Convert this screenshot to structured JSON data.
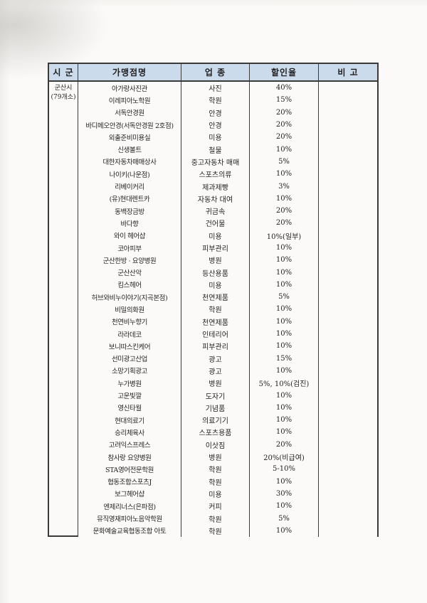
{
  "colors": {
    "header_bg": "#ccdbec",
    "border": "#3a3a3a",
    "page_bg": "#fbfaf8"
  },
  "region": {
    "city": "군산시",
    "count": "(79개소)"
  },
  "table": {
    "headers": {
      "sigun": "시 군",
      "store": "가맹점명",
      "category": "업 종",
      "discount": "할인율",
      "note": "비 고"
    },
    "rows": [
      {
        "store": "아가랑사진관",
        "category": "사진",
        "discount": "40%",
        "note": ""
      },
      {
        "store": "이레피아노학원",
        "category": "학원",
        "discount": "15%",
        "note": ""
      },
      {
        "store": "서독안경원",
        "category": "안경",
        "discount": "20%",
        "note": ""
      },
      {
        "store": "바디메오안경(서독안경원 2호점)",
        "category": "안경",
        "discount": "20%",
        "note": ""
      },
      {
        "store": "외출준비미용실",
        "category": "미용",
        "discount": "20%",
        "note": ""
      },
      {
        "store": "신생볼트",
        "category": "철물",
        "discount": "10%",
        "note": ""
      },
      {
        "store": "대한자동차매매상사",
        "category": "중고자동차 매매",
        "discount": "5%",
        "note": ""
      },
      {
        "store": "나이키(나운점)",
        "category": "스포츠의류",
        "discount": "10%",
        "note": ""
      },
      {
        "store": "리베이커리",
        "category": "제과제빵",
        "discount": "3%",
        "note": ""
      },
      {
        "store": "(유)현대렌트카",
        "category": "자동차 대여",
        "discount": "10%",
        "note": ""
      },
      {
        "store": "동백장금방",
        "category": "귀금속",
        "discount": "20%",
        "note": ""
      },
      {
        "store": "바다향",
        "category": "건어물",
        "discount": "20%",
        "note": ""
      },
      {
        "store": "와이 헤어샵",
        "category": "미용",
        "discount": "10%(일부)",
        "note": ""
      },
      {
        "store": "코아피부",
        "category": "피부관리",
        "discount": "10%",
        "note": ""
      },
      {
        "store": "군산한방 · 요양병원",
        "category": "병원",
        "discount": "10%",
        "note": ""
      },
      {
        "store": "군산산악",
        "category": "등산용품",
        "discount": "10%",
        "note": ""
      },
      {
        "store": "킴스헤어",
        "category": "미용",
        "discount": "10%",
        "note": ""
      },
      {
        "store": "허브와비누이야기(지곡본점)",
        "category": "천연제품",
        "discount": "5%",
        "note": ""
      },
      {
        "store": "비밀의화원",
        "category": "학원",
        "discount": "10%",
        "note": ""
      },
      {
        "store": "천연비누향기",
        "category": "천연제품",
        "discount": "10%",
        "note": ""
      },
      {
        "store": "라라데코",
        "category": "인테리어",
        "discount": "10%",
        "note": ""
      },
      {
        "store": "보니따스킨케어",
        "category": "피부관리",
        "discount": "10%",
        "note": ""
      },
      {
        "store": "선미광고산업",
        "category": "광고",
        "discount": "15%",
        "note": ""
      },
      {
        "store": "소망기획광고",
        "category": "광고",
        "discount": "10%",
        "note": ""
      },
      {
        "store": "누가병원",
        "category": "병원",
        "discount": "5%, 10%(검진)",
        "note": ""
      },
      {
        "store": "고운빛깔",
        "category": "도자기",
        "discount": "10%",
        "note": ""
      },
      {
        "store": "영신타월",
        "category": "기념품",
        "discount": "10%",
        "note": ""
      },
      {
        "store": "현대의료기",
        "category": "의료기기",
        "discount": "10%",
        "note": ""
      },
      {
        "store": "승리체육사",
        "category": "스포츠용품",
        "discount": "10%",
        "note": ""
      },
      {
        "store": "고려익스프레스",
        "category": "이삿짐",
        "discount": "20%",
        "note": ""
      },
      {
        "store": "참사랑 요양병원",
        "category": "병원",
        "discount": "20%(비급여)",
        "note": ""
      },
      {
        "store": "STA영어전문학원",
        "category": "학원",
        "discount": "5-10%",
        "note": ""
      },
      {
        "store": "협동조합스포츠J",
        "category": "학원",
        "discount": "10%",
        "note": ""
      },
      {
        "store": "보그헤어샵",
        "category": "미용",
        "discount": "30%",
        "note": ""
      },
      {
        "store": "엔제리너스(은파점)",
        "category": "커피",
        "discount": "10%",
        "note": ""
      },
      {
        "store": "뮤직영재피아노음악학원",
        "category": "학원",
        "discount": "5%",
        "note": ""
      },
      {
        "store": "문화예술교육협동조합 아토",
        "category": "학원",
        "discount": "10%",
        "note": ""
      }
    ]
  }
}
